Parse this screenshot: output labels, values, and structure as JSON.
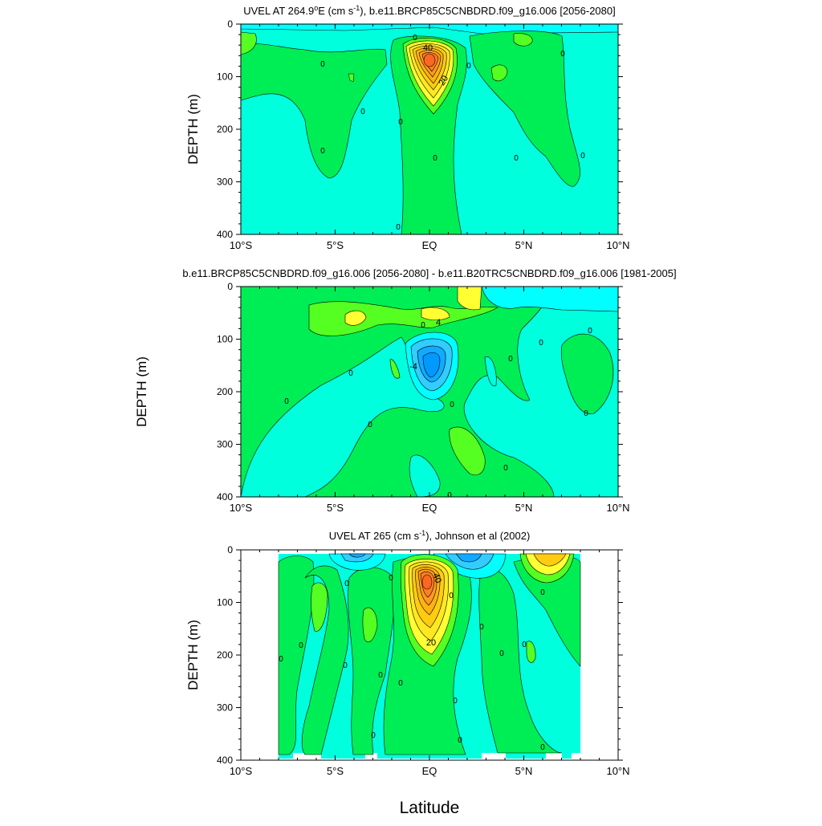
{
  "figure": {
    "xlabel": "Latitude",
    "xtick_labels": [
      "10°S",
      "5°S",
      "EQ",
      "5°N",
      "10°N"
    ]
  },
  "panels": [
    {
      "title_main": "UVEL AT 264.9",
      "title_sup": "o",
      "title_rest": "E (cm s",
      "title_sup2": "-1",
      "title_end": "), b.e11.BRCP85C5CNBDRD.f09_g16.006 [2056-2080]",
      "ylabel": "DEPTH (m)",
      "yticks": [
        "0",
        "100",
        "200",
        "300",
        "400"
      ],
      "contour_labels": [
        "40",
        "20",
        "0"
      ]
    },
    {
      "title_plain": "b.e11.BRCP85C5CNBDRD.f09_g16.006 [2056-2080] - b.e11.B20TRC5CNBDRD.f09_g16.006 [1981-2005]",
      "ylabel": "DEPTH (m)",
      "yticks": [
        "0",
        "100",
        "200",
        "300",
        "400"
      ],
      "contour_labels": [
        "4",
        "-4",
        "0"
      ]
    },
    {
      "title_main": "UVEL AT 265 (cm s",
      "title_sup": "-1",
      "title_end": "), Johnson et al (2002)",
      "ylabel": "DEPTH (m)",
      "yticks": [
        "0",
        "100",
        "200",
        "300",
        "400"
      ],
      "contour_labels": [
        "40",
        "20",
        "0"
      ]
    }
  ],
  "colors": {
    "cyan": "#00ffff",
    "aqua": "#00ffdd",
    "green": "#00ee55",
    "lightgreen": "#55ff22",
    "yellow": "#ffff33",
    "gold": "#ffcc11",
    "orange": "#ff9922",
    "darkorange": "#ff6622",
    "blue": "#11aaff",
    "lightblue": "#33ccff"
  },
  "chart_data": [
    {
      "type": "heatmap",
      "subtype": "contour",
      "title": "UVEL AT 264.9°E (cm s-1), b.e11.BRCP85C5CNBDRD.f09_g16.006 [2056-2080]",
      "xlabel": "Latitude",
      "ylabel": "DEPTH (m)",
      "xlim": [
        -10,
        10
      ],
      "ylim": [
        400,
        0
      ],
      "contour_labels": [
        40,
        20,
        0
      ],
      "core_max_approx": 45,
      "core_location": {
        "lat": 0,
        "depth": 70
      }
    },
    {
      "type": "heatmap",
      "subtype": "contour",
      "title": "b.e11.BRCP85C5CNBDRD.f09_g16.006 [2056-2080] - b.e11.B20TRC5CNBDRD.f09_g16.006 [1981-2005]",
      "xlabel": "Latitude",
      "ylabel": "DEPTH (m)",
      "xlim": [
        -10,
        10
      ],
      "ylim": [
        400,
        0
      ],
      "contour_labels": [
        4,
        -4,
        0
      ],
      "min_location": {
        "lat": 0,
        "depth": 140
      }
    },
    {
      "type": "heatmap",
      "subtype": "contour",
      "title": "UVEL AT 265 (cm s-1), Johnson et al (2002)",
      "xlabel": "Latitude",
      "ylabel": "DEPTH (m)",
      "xlim": [
        -10,
        10
      ],
      "ylim": [
        400,
        0
      ],
      "data_lat_range": [
        -8,
        8
      ],
      "contour_labels": [
        40,
        20,
        0
      ],
      "core_location": {
        "lat": 0,
        "depth": 65
      }
    }
  ]
}
